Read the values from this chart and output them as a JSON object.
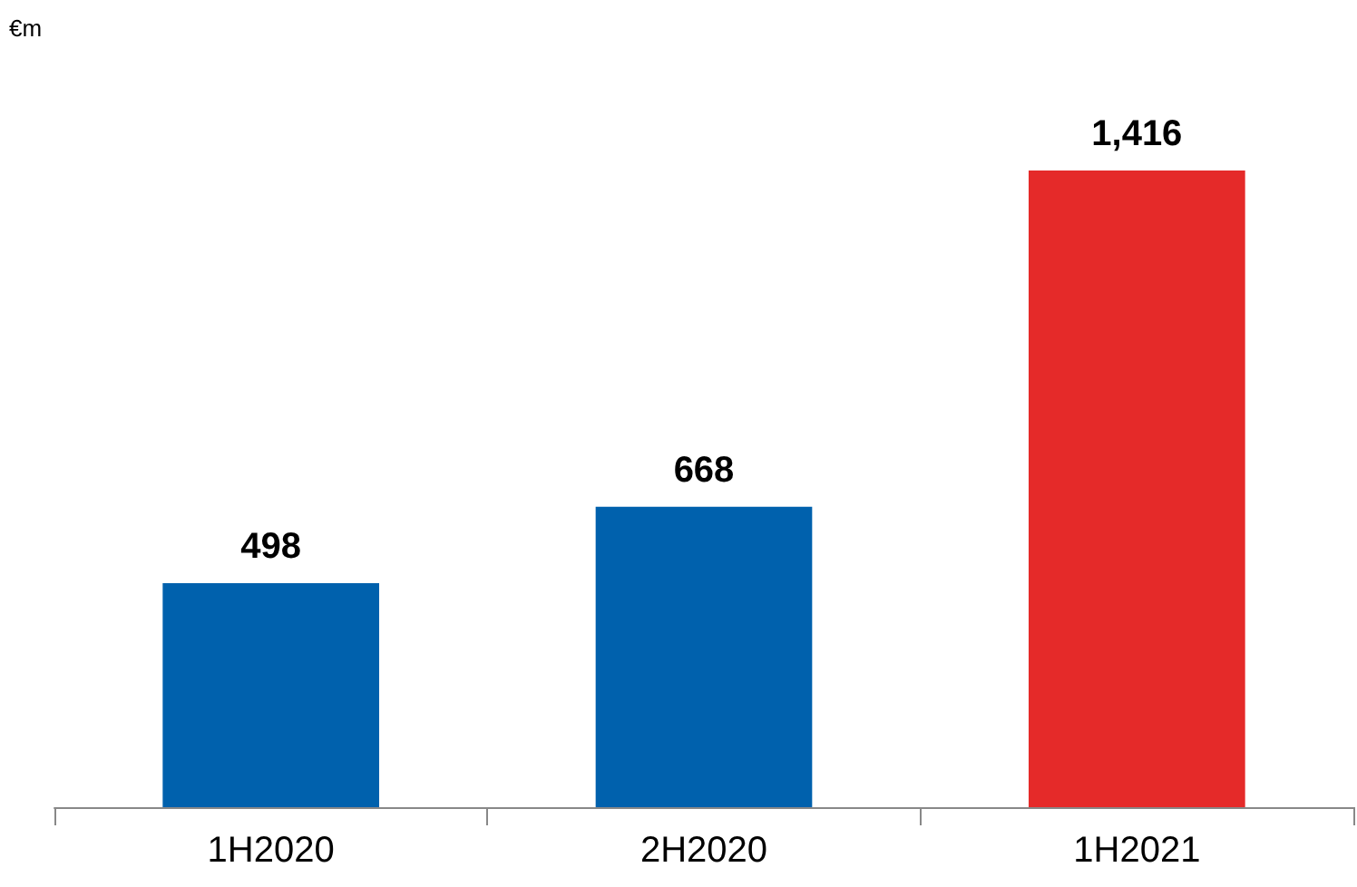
{
  "chart_data": {
    "type": "bar",
    "title": "€m",
    "categories": [
      "1H2020",
      "2H2020",
      "1H2021"
    ],
    "values": [
      498,
      668,
      1416
    ],
    "colors": [
      "#0061ad",
      "#0061ad",
      "#e52a29"
    ],
    "value_labels": [
      "498",
      "668",
      "1,416"
    ]
  }
}
